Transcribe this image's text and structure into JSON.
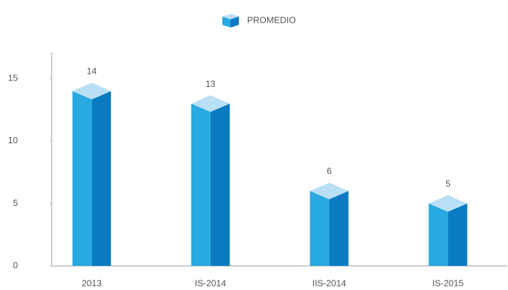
{
  "chart_data": {
    "type": "bar3d",
    "categories": [
      "2013",
      "IS-2014",
      "IIS-2014",
      "IS-2015"
    ],
    "series": [
      {
        "name": "PROMEDIO",
        "color": "#29a9e1",
        "values": [
          14,
          13,
          6,
          5
        ]
      }
    ],
    "ylim": [
      0,
      17
    ],
    "yticks": [
      0,
      5,
      10,
      15
    ],
    "grid": false,
    "legend": "top"
  }
}
